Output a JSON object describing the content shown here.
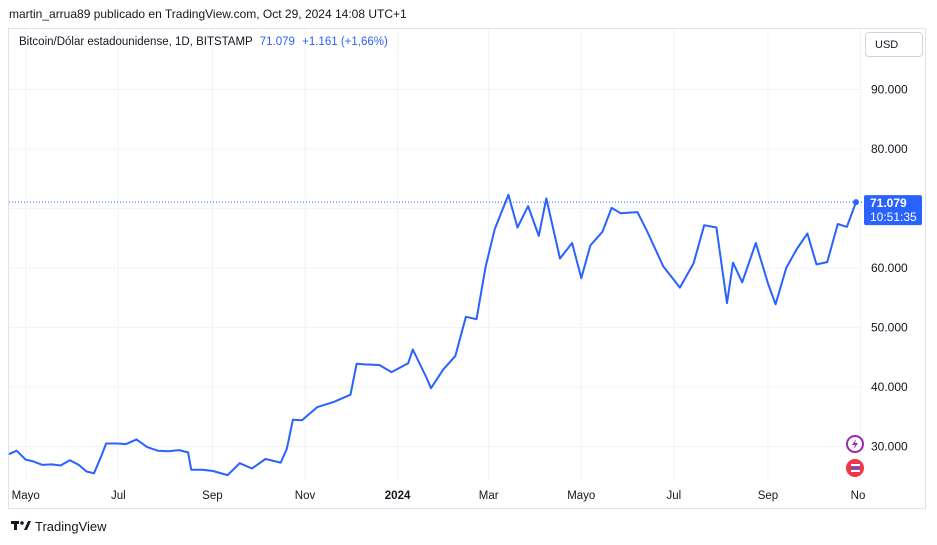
{
  "header": {
    "publisher_line": "martin_arrua89 publicado en TradingView.com, Oct 29, 2024 14:08 UTC+1"
  },
  "legend": {
    "symbol": "Bitcoin/Dólar estadounidense, 1D, BITSTAMP",
    "last_value": "71.079",
    "change": "+1.161 (+1,66%)"
  },
  "currency_button": {
    "label": "USD"
  },
  "price_label": {
    "value": "71.079",
    "countdown": "10:51:35"
  },
  "footer": {
    "brand": "TradingView"
  },
  "colors": {
    "line": "#2962ff",
    "grid": "#f0f3fa",
    "price_tag": "#2962ff"
  },
  "icons": [
    "lightning-icon",
    "flag-icon"
  ],
  "chart_data": {
    "type": "line",
    "y_axis": {
      "ticks": [
        "90.000",
        "80.000",
        "70.000",
        "60.000",
        "50.000",
        "40.000",
        "30.000"
      ],
      "tick_values": [
        90000,
        80000,
        70000,
        60000,
        50000,
        40000,
        30000
      ],
      "range": [
        24000,
        94000
      ]
    },
    "x_axis": {
      "ticks": [
        "Mayo",
        "Jul",
        "Sep",
        "Nov",
        "2024",
        "Mar",
        "Mayo",
        "Jul",
        "Sep",
        "No"
      ],
      "tick_dates": [
        "2023-05-01",
        "2023-07-01",
        "2023-09-01",
        "2023-11-01",
        "2024-01-01",
        "2024-03-01",
        "2024-05-01",
        "2024-07-01",
        "2024-09-01",
        "2024-11-01"
      ],
      "range": [
        "2023-04-20",
        "2024-10-29"
      ]
    },
    "grid": true,
    "series": [
      {
        "x": [
          "2023-04-20",
          "2023-04-25",
          "2023-05-01",
          "2023-05-06",
          "2023-05-12",
          "2023-05-18",
          "2023-05-24",
          "2023-05-30",
          "2023-06-05",
          "2023-06-10",
          "2023-06-15",
          "2023-06-20",
          "2023-06-23",
          "2023-06-30",
          "2023-07-06",
          "2023-07-13",
          "2023-07-20",
          "2023-07-27",
          "2023-08-03",
          "2023-08-10",
          "2023-08-16",
          "2023-08-18",
          "2023-08-25",
          "2023-09-01",
          "2023-09-11",
          "2023-09-19",
          "2023-09-27",
          "2023-10-06",
          "2023-10-16",
          "2023-10-20",
          "2023-10-24",
          "2023-10-30",
          "2023-11-09",
          "2023-11-20",
          "2023-12-01",
          "2023-12-05",
          "2023-12-10",
          "2023-12-20",
          "2023-12-28",
          "2024-01-08",
          "2024-01-11",
          "2024-01-20",
          "2024-01-23",
          "2024-01-31",
          "2024-02-08",
          "2024-02-15",
          "2024-02-22",
          "2024-02-28",
          "2024-03-05",
          "2024-03-14",
          "2024-03-20",
          "2024-03-27",
          "2024-04-03",
          "2024-04-08",
          "2024-04-17",
          "2024-04-25",
          "2024-05-01",
          "2024-05-07",
          "2024-05-15",
          "2024-05-21",
          "2024-05-27",
          "2024-06-07",
          "2024-06-13",
          "2024-06-24",
          "2024-07-05",
          "2024-07-14",
          "2024-07-21",
          "2024-07-29",
          "2024-08-05",
          "2024-08-09",
          "2024-08-15",
          "2024-08-24",
          "2024-09-01",
          "2024-09-06",
          "2024-09-13",
          "2024-09-20",
          "2024-09-27",
          "2024-10-03",
          "2024-10-10",
          "2024-10-17",
          "2024-10-23",
          "2024-10-29"
        ],
        "y": [
          28700,
          29300,
          27800,
          27500,
          26900,
          27000,
          26800,
          27700,
          26900,
          25800,
          25500,
          28500,
          30500,
          30500,
          30400,
          31200,
          29900,
          29300,
          29200,
          29400,
          29000,
          26100,
          26100,
          25900,
          25200,
          27200,
          26300,
          27900,
          27300,
          29600,
          34500,
          34400,
          36600,
          37500,
          38700,
          43900,
          43800,
          43700,
          42500,
          44000,
          46300,
          41600,
          39800,
          42900,
          45200,
          51800,
          51400,
          60200,
          66500,
          72300,
          66800,
          70400,
          65400,
          71700,
          61600,
          64200,
          58300,
          63800,
          66100,
          70100,
          69200,
          69400,
          66400,
          60300,
          56700,
          60800,
          67200,
          66800,
          54100,
          60900,
          57600,
          64200,
          57400,
          53900,
          60000,
          63200,
          65800,
          60600,
          61000,
          67400,
          66900,
          71079
        ]
      }
    ]
  }
}
